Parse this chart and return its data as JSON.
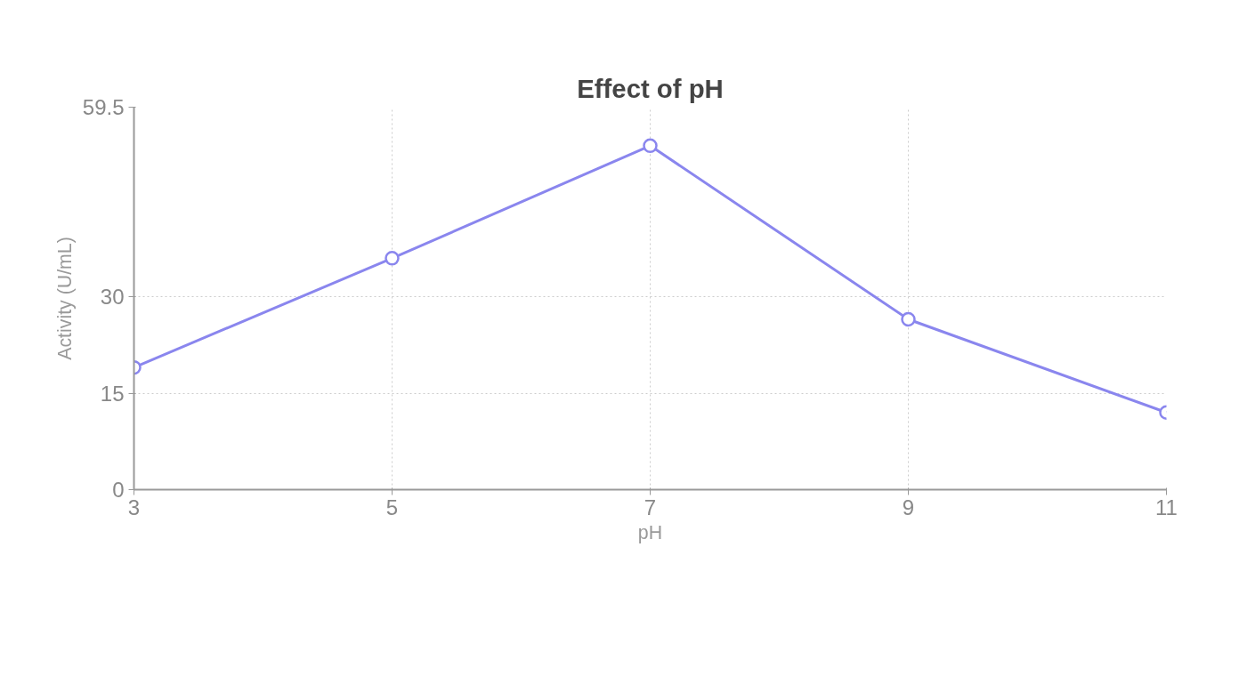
{
  "chart_data": {
    "type": "line",
    "title": "Effect of pH",
    "xlabel": "pH",
    "ylabel": "Activity (U/mL)",
    "x": [
      3,
      5,
      7,
      9,
      11
    ],
    "series": [
      {
        "color": "#8a86ee",
        "values": [
          19,
          36,
          53.5,
          26.5,
          12
        ]
      }
    ],
    "xlim": [
      3,
      11
    ],
    "ylim": [
      0,
      59.5
    ],
    "xticks": [
      3,
      5,
      7,
      9,
      11
    ],
    "yticks": [
      0,
      15,
      30,
      59.5
    ],
    "grid": true,
    "marker": "circle",
    "line_style": "solid"
  }
}
